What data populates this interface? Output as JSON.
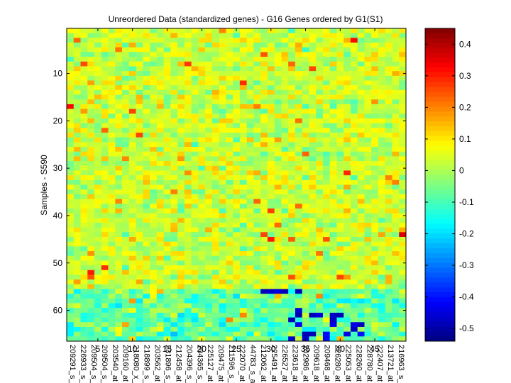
{
  "chart_data": {
    "type": "heatmap",
    "title": "Unreordered Data (standardized genes) - G16 Genes ordered by G1(S1)",
    "ylabel": "Samples - S590",
    "xlabel": "",
    "n_cols": 49,
    "n_rows": 66,
    "x_ticks": [
      5,
      10,
      15,
      20,
      25,
      30,
      35,
      40,
      45
    ],
    "y_ticks": [
      10,
      20,
      30,
      40,
      50,
      60
    ],
    "x_gene_labels": [
      "209291_s_at",
      "226933_s_at",
      "209504_s_at",
      "209504_s_at",
      "203540_at",
      "209160_at",
      "218080_x_at",
      "218899_s_at",
      "203562_at",
      "231896_s_at",
      "212458_at",
      "204396_s_at",
      "204365_s_at",
      "225127_at",
      "209475_at",
      "211596_s_at",
      "222070_at",
      "44783_s_at",
      "212062_at",
      "225491_at",
      "226527_at",
      "223618_at",
      "202986_at",
      "209618_at",
      "209468_at",
      "226280_at",
      "225053_at",
      "228260_at",
      "228780_at",
      "222407_at",
      "213721_at",
      "216963_s_at"
    ],
    "colorbar": {
      "colormap": "jet",
      "min": -0.54,
      "max": 0.45,
      "ticks": [
        0.4,
        0.3,
        0.2,
        0.1,
        0,
        -0.1,
        -0.2,
        -0.3,
        -0.4,
        -0.5
      ]
    },
    "notes": "Cell values are random standardized expression values in approx. [-0.54, 0.45]; mostly near 0 (yellow/green) with a band of strongly negative (blue) values in rows ~56-66 and scattered positive (red/orange) outliers."
  }
}
